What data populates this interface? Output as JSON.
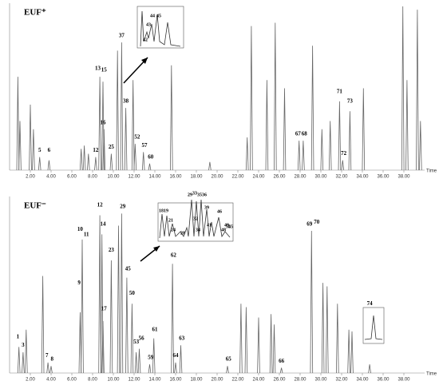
{
  "chart_data": [
    {
      "type": "chromatogram",
      "title": "EUF⁺",
      "xlabel": "Time",
      "xlim": [
        0,
        40
      ],
      "ylim": [
        0,
        100
      ],
      "xticks": [
        {
          "value": 2,
          "label": "2.00"
        },
        {
          "value": 4,
          "label": "4.00"
        },
        {
          "value": 6,
          "label": "6.00"
        },
        {
          "value": 8,
          "label": "8.00"
        },
        {
          "value": 10,
          "label": "10.00"
        },
        {
          "value": 12,
          "label": "12.00"
        },
        {
          "value": 14,
          "label": "14.00"
        },
        {
          "value": 16,
          "label": "16.00"
        },
        {
          "value": 18,
          "label": "18.00"
        },
        {
          "value": 20,
          "label": "20.00"
        },
        {
          "value": 22,
          "label": "22.00"
        },
        {
          "value": 24,
          "label": "24.00"
        },
        {
          "value": 26,
          "label": "26.00"
        },
        {
          "value": 28,
          "label": "28.00"
        },
        {
          "value": 30,
          "label": "30.00"
        },
        {
          "value": 32,
          "label": "32.00"
        },
        {
          "value": 34,
          "label": "34.00"
        },
        {
          "value": 36,
          "label": "36.00"
        },
        {
          "value": 38,
          "label": "38.00"
        }
      ],
      "color": "#666666",
      "x": [
        0.8,
        1.0,
        2.0,
        2.3,
        2.9,
        3.8,
        6.9,
        7.2,
        7.6,
        8.3,
        8.7,
        9.0,
        9.1,
        9.8,
        10.4,
        10.8,
        11.2,
        11.9,
        12.1,
        12.9,
        13.5,
        15.6,
        19.3,
        22.9,
        23.3,
        24.8,
        25.6,
        26.5,
        27.9,
        28.3,
        29.2,
        30.1,
        30.9,
        31.8,
        32.1,
        32.8,
        34.1,
        37.9,
        38.3,
        39.3,
        39.6
      ],
      "values": [
        57,
        30,
        40,
        25,
        8,
        6,
        13,
        15,
        10,
        8,
        57,
        54,
        25,
        10,
        73,
        78,
        38,
        55,
        16,
        11,
        4,
        64,
        5,
        20,
        88,
        55,
        90,
        50,
        18,
        18,
        76,
        25,
        30,
        42,
        6,
        36,
        50,
        100,
        55,
        98,
        30
      ],
      "peak_labels": [
        {
          "text": "5",
          "x": 2.9,
          "y": 10
        },
        {
          "text": "6",
          "x": 3.8,
          "y": 10
        },
        {
          "text": "12",
          "x": 8.3,
          "y": 10
        },
        {
          "text": "13",
          "x": 8.5,
          "y": 60
        },
        {
          "text": "15",
          "x": 9.1,
          "y": 59
        },
        {
          "text": "16",
          "x": 9.0,
          "y": 27
        },
        {
          "text": "25",
          "x": 9.8,
          "y": 12
        },
        {
          "text": "37",
          "x": 10.8,
          "y": 80
        },
        {
          "text": "38",
          "x": 11.2,
          "y": 40
        },
        {
          "text": "52",
          "x": 12.3,
          "y": 18
        },
        {
          "text": "57",
          "x": 13.0,
          "y": 13
        },
        {
          "text": "60",
          "x": 13.6,
          "y": 6
        },
        {
          "text": "67",
          "x": 27.8,
          "y": 20
        },
        {
          "text": "68",
          "x": 28.4,
          "y": 20
        },
        {
          "text": "71",
          "x": 31.8,
          "y": 46
        },
        {
          "text": "72",
          "x": 32.2,
          "y": 8
        },
        {
          "text": "73",
          "x": 32.8,
          "y": 40
        }
      ],
      "inset_labels": [
        "42",
        "43",
        "44",
        "45"
      ]
    },
    {
      "type": "chromatogram",
      "title": "EUF⁻",
      "xlabel": "Time",
      "xlim": [
        0,
        40
      ],
      "ylim": [
        0,
        100
      ],
      "xticks": [
        {
          "value": 2,
          "label": "2.00"
        },
        {
          "value": 4,
          "label": "4.00"
        },
        {
          "value": 6,
          "label": "6.00"
        },
        {
          "value": 8,
          "label": "8.00"
        },
        {
          "value": 10,
          "label": "10.00"
        },
        {
          "value": 12,
          "label": "12.00"
        },
        {
          "value": 14,
          "label": "14.00"
        },
        {
          "value": 16,
          "label": "16.00"
        },
        {
          "value": 18,
          "label": "18.00"
        },
        {
          "value": 20,
          "label": "20.00"
        },
        {
          "value": 22,
          "label": "22.00"
        },
        {
          "value": 24,
          "label": "24.00"
        },
        {
          "value": 26,
          "label": "26.00"
        },
        {
          "value": 28,
          "label": "28.00"
        },
        {
          "value": 30,
          "label": "30.00"
        },
        {
          "value": 32,
          "label": "32.00"
        },
        {
          "value": 34,
          "label": "34.00"
        },
        {
          "value": 36,
          "label": "36.00"
        },
        {
          "value": 38,
          "label": "38.00"
        }
      ],
      "color": "#666666",
      "x": [
        0.9,
        1.3,
        1.6,
        3.2,
        3.7,
        4.0,
        6.8,
        7.0,
        8.7,
        8.9,
        9.0,
        9.8,
        10.5,
        10.8,
        11.3,
        11.8,
        12.2,
        12.5,
        13.5,
        13.9,
        15.7,
        16.0,
        16.5,
        21.0,
        22.3,
        22.8,
        24.0,
        25.2,
        25.5,
        26.2,
        29.1,
        30.2,
        30.6,
        31.6,
        32.7,
        33.0,
        34.7
      ],
      "values": [
        15,
        12,
        25,
        56,
        6,
        4,
        35,
        77,
        91,
        80,
        30,
        65,
        85,
        92,
        55,
        40,
        12,
        14,
        5,
        20,
        63,
        6,
        16,
        4,
        40,
        38,
        32,
        34,
        28,
        3,
        82,
        52,
        50,
        40,
        25,
        24,
        5
      ],
      "peak_labels": [
        {
          "text": "1",
          "x": 0.8,
          "y": 19
        },
        {
          "text": "3",
          "x": 1.3,
          "y": 14
        },
        {
          "text": "7",
          "x": 3.6,
          "y": 8
        },
        {
          "text": "8",
          "x": 4.1,
          "y": 6
        },
        {
          "text": "9",
          "x": 6.7,
          "y": 50
        },
        {
          "text": "10",
          "x": 6.8,
          "y": 81
        },
        {
          "text": "11",
          "x": 7.4,
          "y": 78
        },
        {
          "text": "12",
          "x": 8.7,
          "y": 95
        },
        {
          "text": "14",
          "x": 9.0,
          "y": 84
        },
        {
          "text": "17",
          "x": 9.1,
          "y": 35
        },
        {
          "text": "23",
          "x": 9.8,
          "y": 69
        },
        {
          "text": "29",
          "x": 10.9,
          "y": 94
        },
        {
          "text": "45",
          "x": 11.4,
          "y": 58
        },
        {
          "text": "50",
          "x": 11.8,
          "y": 44
        },
        {
          "text": "53",
          "x": 12.2,
          "y": 16
        },
        {
          "text": "56",
          "x": 12.7,
          "y": 18
        },
        {
          "text": "59",
          "x": 13.6,
          "y": 7
        },
        {
          "text": "61",
          "x": 14.0,
          "y": 23
        },
        {
          "text": "62",
          "x": 15.8,
          "y": 66
        },
        {
          "text": "63",
          "x": 16.6,
          "y": 18
        },
        {
          "text": "64",
          "x": 16.0,
          "y": 8
        },
        {
          "text": "65",
          "x": 21.1,
          "y": 6
        },
        {
          "text": "66",
          "x": 26.2,
          "y": 5
        },
        {
          "text": "69",
          "x": 28.9,
          "y": 84
        },
        {
          "text": "70",
          "x": 29.6,
          "y": 85
        },
        {
          "text": "74",
          "x": 34.7,
          "y": 38
        }
      ],
      "inset_labels": [
        "18",
        "19",
        "21",
        "24",
        "28",
        "29",
        "33",
        "35",
        "36",
        "32",
        "34",
        "39",
        "41",
        "46",
        "48",
        "49",
        "54",
        "55"
      ]
    }
  ]
}
